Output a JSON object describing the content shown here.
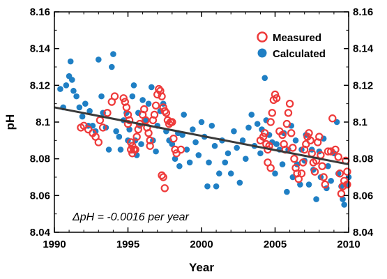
{
  "chart_data": {
    "type": "scatter",
    "title": "",
    "xlabel": "Year",
    "ylabel": "pH",
    "xlim": [
      1990,
      2010
    ],
    "ylim": [
      8.04,
      8.16
    ],
    "x_ticks": [
      1990,
      1995,
      2000,
      2005,
      2010
    ],
    "x_tick_labels": [
      "1990",
      "1995",
      "2000",
      "2005",
      "2010"
    ],
    "y_ticks": [
      8.04,
      8.06,
      8.08,
      8.1,
      8.12,
      8.14,
      8.16
    ],
    "y_tick_labels": [
      "8.04",
      "8.06",
      "8.08",
      "8.1",
      "8.12",
      "8.14",
      "8.16"
    ],
    "grid": false,
    "legend_position": "top-right",
    "annotation": "ΔpH = -0.0016 per year",
    "colors": {
      "measured": "#ee3a3a",
      "calculated": "#1f7fc4",
      "trend": "#3a3a3a"
    },
    "series": [
      {
        "name": "Measured",
        "marker": "open-circle",
        "points": [
          [
            1991.8,
            8.097
          ],
          [
            1992.0,
            8.098
          ],
          [
            1992.3,
            8.096
          ],
          [
            1992.6,
            8.094
          ],
          [
            1992.8,
            8.092
          ],
          [
            1993.0,
            8.089
          ],
          [
            1993.1,
            8.101
          ],
          [
            1993.3,
            8.097
          ],
          [
            1993.6,
            8.105
          ],
          [
            1993.9,
            8.111
          ],
          [
            1994.1,
            8.114
          ],
          [
            1994.7,
            8.113
          ],
          [
            1994.8,
            8.111
          ],
          [
            1994.9,
            8.108
          ],
          [
            1995.0,
            8.104
          ],
          [
            1995.1,
            8.101
          ],
          [
            1995.0,
            8.099
          ],
          [
            1995.2,
            8.089
          ],
          [
            1995.3,
            8.087
          ],
          [
            1995.4,
            8.085
          ],
          [
            1995.2,
            8.085
          ],
          [
            1995.3,
            8.083
          ],
          [
            1995.5,
            8.085
          ],
          [
            1995.6,
            8.092
          ],
          [
            1995.7,
            8.096
          ],
          [
            1995.8,
            8.099
          ],
          [
            1996.0,
            8.104
          ],
          [
            1996.1,
            8.107
          ],
          [
            1996.2,
            8.101
          ],
          [
            1996.3,
            8.097
          ],
          [
            1996.4,
            8.094
          ],
          [
            1996.5,
            8.09
          ],
          [
            1996.7,
            8.101
          ],
          [
            1996.8,
            8.104
          ],
          [
            1996.9,
            8.109
          ],
          [
            1997.0,
            8.115
          ],
          [
            1997.1,
            8.118
          ],
          [
            1997.2,
            8.117
          ],
          [
            1997.3,
            8.114
          ],
          [
            1997.4,
            8.108
          ],
          [
            1997.5,
            8.106
          ],
          [
            1997.6,
            8.105
          ],
          [
            1997.7,
            8.101
          ],
          [
            1997.8,
            8.099
          ],
          [
            1997.9,
            8.1
          ],
          [
            1998.0,
            8.1
          ],
          [
            1998.1,
            8.091
          ],
          [
            1998.2,
            8.085
          ],
          [
            1998.3,
            8.083
          ],
          [
            1997.3,
            8.071
          ],
          [
            1997.4,
            8.07
          ],
          [
            1997.5,
            8.064
          ],
          [
            1996.5,
            8.087
          ],
          [
            1998.6,
            8.085
          ],
          [
            2004.0,
            8.09
          ],
          [
            2004.2,
            8.092
          ],
          [
            2004.3,
            8.094
          ],
          [
            2004.4,
            8.088
          ],
          [
            2004.5,
            8.085
          ],
          [
            2004.6,
            8.087
          ],
          [
            2004.7,
            8.1
          ],
          [
            2004.8,
            8.105
          ],
          [
            2004.9,
            8.112
          ],
          [
            2005.0,
            8.115
          ],
          [
            2005.1,
            8.113
          ],
          [
            2004.5,
            8.078
          ],
          [
            2004.7,
            8.075
          ],
          [
            2005.3,
            8.095
          ],
          [
            2005.5,
            8.093
          ],
          [
            2005.6,
            8.088
          ],
          [
            2005.7,
            8.085
          ],
          [
            2005.8,
            8.099
          ],
          [
            2005.9,
            8.105
          ],
          [
            2006.0,
            8.11
          ],
          [
            2006.1,
            8.094
          ],
          [
            2006.2,
            8.086
          ],
          [
            2006.3,
            8.08
          ],
          [
            2006.4,
            8.075
          ],
          [
            2006.5,
            8.072
          ],
          [
            2006.6,
            8.069
          ],
          [
            2006.8,
            8.072
          ],
          [
            2006.9,
            8.078
          ],
          [
            2007.0,
            8.085
          ],
          [
            2007.1,
            8.088
          ],
          [
            2007.2,
            8.092
          ],
          [
            2007.3,
            8.094
          ],
          [
            2007.4,
            8.09
          ],
          [
            2007.5,
            8.083
          ],
          [
            2007.6,
            8.078
          ],
          [
            2007.7,
            8.073
          ],
          [
            2007.8,
            8.079
          ],
          [
            2007.9,
            8.089
          ],
          [
            2008.0,
            8.092
          ],
          [
            2008.1,
            8.082
          ],
          [
            2008.2,
            8.076
          ],
          [
            2008.3,
            8.07
          ],
          [
            2008.4,
            8.066
          ],
          [
            2008.6,
            8.084
          ],
          [
            2008.8,
            8.084
          ],
          [
            2008.9,
            8.102
          ],
          [
            2009.1,
            8.085
          ],
          [
            2009.3,
            8.081
          ],
          [
            2009.4,
            8.072
          ],
          [
            2009.5,
            8.061
          ],
          [
            2009.6,
            8.065
          ],
          [
            2009.7,
            8.068
          ],
          [
            2009.8,
            8.079
          ],
          [
            2009.9,
            8.073
          ],
          [
            2009.9,
            8.066
          ]
        ]
      },
      {
        "name": "Calculated",
        "marker": "filled-circle",
        "points": [
          [
            1990.4,
            8.118
          ],
          [
            1990.6,
            8.108
          ],
          [
            1990.8,
            8.12
          ],
          [
            1991.0,
            8.125
          ],
          [
            1991.1,
            8.133
          ],
          [
            1991.2,
            8.123
          ],
          [
            1991.3,
            8.117
          ],
          [
            1991.5,
            8.114
          ],
          [
            1991.7,
            8.108
          ],
          [
            1991.9,
            8.103
          ],
          [
            1992.1,
            8.11
          ],
          [
            1992.3,
            8.098
          ],
          [
            1992.4,
            8.106
          ],
          [
            1992.6,
            8.098
          ],
          [
            1992.8,
            8.095
          ],
          [
            1993.0,
            8.134
          ],
          [
            1993.2,
            8.114
          ],
          [
            1993.3,
            8.105
          ],
          [
            1993.5,
            8.097
          ],
          [
            1993.7,
            8.085
          ],
          [
            1993.9,
            8.13
          ],
          [
            1994.0,
            8.137
          ],
          [
            1994.2,
            8.095
          ],
          [
            1994.4,
            8.092
          ],
          [
            1994.5,
            8.085
          ],
          [
            1994.7,
            8.101
          ],
          [
            1994.9,
            8.105
          ],
          [
            1995.0,
            8.09
          ],
          [
            1995.1,
            8.096
          ],
          [
            1995.3,
            8.114
          ],
          [
            1995.4,
            8.12
          ],
          [
            1995.5,
            8.09
          ],
          [
            1995.6,
            8.082
          ],
          [
            1995.7,
            8.105
          ],
          [
            1995.8,
            8.098
          ],
          [
            1995.9,
            8.088
          ],
          [
            1996.0,
            8.112
          ],
          [
            1996.2,
            8.101
          ],
          [
            1996.4,
            8.11
          ],
          [
            1996.6,
            8.119
          ],
          [
            1996.7,
            8.09
          ],
          [
            1996.9,
            8.084
          ],
          [
            1997.0,
            8.098
          ],
          [
            1997.2,
            8.106
          ],
          [
            1997.4,
            8.11
          ],
          [
            1997.6,
            8.095
          ],
          [
            1997.8,
            8.09
          ],
          [
            1998.0,
            8.088
          ],
          [
            1998.2,
            8.08
          ],
          [
            1998.4,
            8.094
          ],
          [
            1998.5,
            8.076
          ],
          [
            1998.7,
            8.093
          ],
          [
            1998.8,
            8.104
          ],
          [
            1999.0,
            8.085
          ],
          [
            1999.2,
            8.078
          ],
          [
            1999.4,
            8.096
          ],
          [
            1999.6,
            8.089
          ],
          [
            1999.8,
            8.082
          ],
          [
            2000.0,
            8.1
          ],
          [
            2000.2,
            8.092
          ],
          [
            2000.4,
            8.065
          ],
          [
            2000.5,
            8.078
          ],
          [
            2000.7,
            8.098
          ],
          [
            2000.9,
            8.087
          ],
          [
            2001.0,
            8.065
          ],
          [
            2001.2,
            8.072
          ],
          [
            2001.4,
            8.09
          ],
          [
            2001.6,
            8.078
          ],
          [
            2001.8,
            8.083
          ],
          [
            2002.0,
            8.072
          ],
          [
            2002.2,
            8.095
          ],
          [
            2002.4,
            8.086
          ],
          [
            2002.6,
            8.067
          ],
          [
            2002.8,
            8.09
          ],
          [
            2003.0,
            8.08
          ],
          [
            2003.2,
            8.097
          ],
          [
            2003.4,
            8.104
          ],
          [
            2003.6,
            8.087
          ],
          [
            2003.8,
            8.099
          ],
          [
            2004.0,
            8.083
          ],
          [
            2004.1,
            8.096
          ],
          [
            2004.3,
            8.124
          ],
          [
            2004.4,
            8.101
          ],
          [
            2004.6,
            8.093
          ],
          [
            2004.8,
            8.089
          ],
          [
            2005.0,
            8.072
          ],
          [
            2005.1,
            8.088
          ],
          [
            2005.3,
            8.085
          ],
          [
            2005.5,
            8.077
          ],
          [
            2005.6,
            8.094
          ],
          [
            2005.8,
            8.062
          ],
          [
            2005.9,
            8.085
          ],
          [
            2006.1,
            8.098
          ],
          [
            2006.2,
            8.07
          ],
          [
            2006.4,
            8.09
          ],
          [
            2006.5,
            8.077
          ],
          [
            2006.7,
            8.066
          ],
          [
            2006.8,
            8.085
          ],
          [
            2007.0,
            8.079
          ],
          [
            2007.1,
            8.093
          ],
          [
            2007.3,
            8.066
          ],
          [
            2007.5,
            8.085
          ],
          [
            2007.6,
            8.074
          ],
          [
            2007.8,
            8.058
          ],
          [
            2008.0,
            8.084
          ],
          [
            2008.1,
            8.07
          ],
          [
            2008.3,
            8.091
          ],
          [
            2008.5,
            8.064
          ],
          [
            2008.6,
            8.076
          ],
          [
            2008.8,
            8.068
          ],
          [
            2009.0,
            8.083
          ],
          [
            2009.2,
            8.1
          ],
          [
            2009.3,
            8.072
          ],
          [
            2009.5,
            8.065
          ],
          [
            2009.6,
            8.058
          ],
          [
            2009.7,
            8.055
          ],
          [
            2009.9,
            8.066
          ],
          [
            2010.0,
            8.07
          ]
        ]
      }
    ],
    "trend_line": {
      "x": [
        1990,
        2010
      ],
      "y": [
        8.108,
        8.077
      ]
    }
  }
}
